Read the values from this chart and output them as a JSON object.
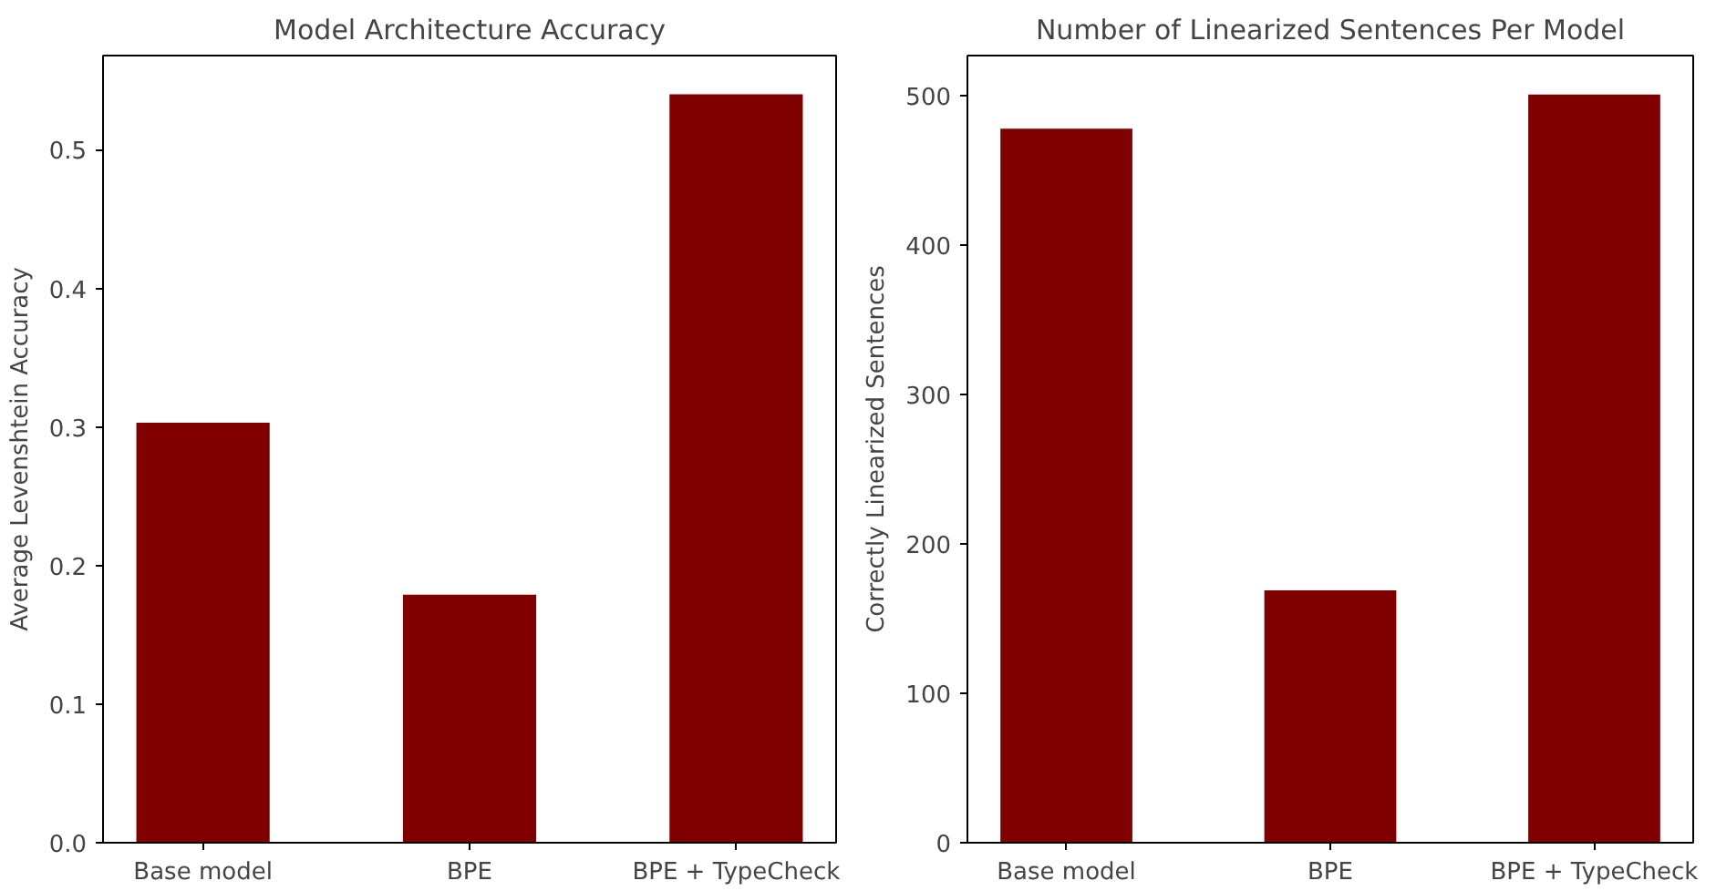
{
  "chart_data": [
    {
      "type": "bar",
      "title": "Model Architecture Accuracy",
      "ylabel": "Average Levenshtein Accuracy",
      "categories": [
        "Base model",
        "BPE",
        "BPE + TypeCheck"
      ],
      "values": [
        0.303,
        0.179,
        0.54
      ],
      "color": "#800000",
      "ylim": [
        0,
        0.568
      ],
      "yticks": [
        {
          "value": 0,
          "label": "0.0"
        },
        0.1,
        0.2,
        0.3,
        0.4,
        0.5
      ],
      "grid": false
    },
    {
      "type": "bar",
      "title": "Number of Linearized Sentences Per Model",
      "ylabel": "Correctly Linearized Sentences",
      "categories": [
        "Base model",
        "BPE",
        "BPE + TypeCheck"
      ],
      "values": [
        478,
        169,
        501
      ],
      "color": "#800000",
      "ylim": [
        0,
        527
      ],
      "yticks": [
        0,
        100,
        200,
        300,
        400,
        500
      ],
      "grid": false
    }
  ]
}
